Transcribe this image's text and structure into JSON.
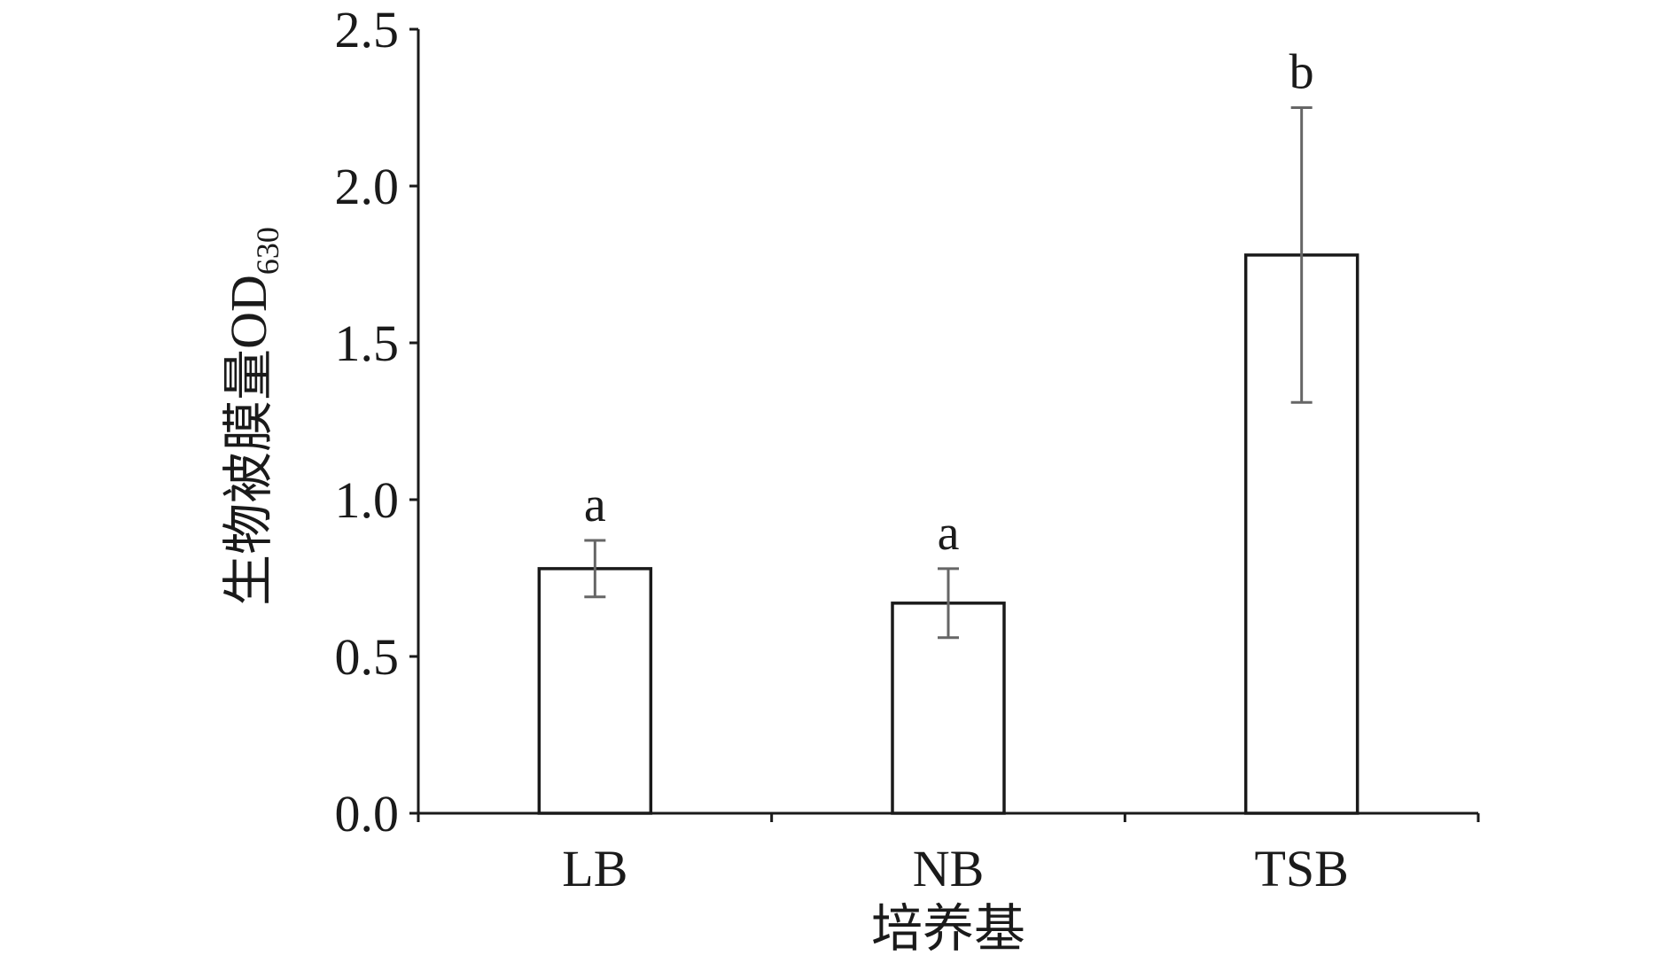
{
  "chart_data": {
    "type": "bar",
    "title": "",
    "xlabel": "培养基",
    "ylabel": "生物被膜量OD",
    "ylabel_subscript": "630",
    "categories": [
      "LB",
      "NB",
      "TSB"
    ],
    "values": [
      0.78,
      0.67,
      1.78
    ],
    "error_bars": [
      0.09,
      0.11,
      0.47
    ],
    "significance_labels": [
      "a",
      "a",
      "b"
    ],
    "ylim": [
      0,
      2.5
    ],
    "yticks": [
      "0.0",
      "0.5",
      "1.0",
      "1.5",
      "2.0",
      "2.5"
    ],
    "ytick_values": [
      0,
      0.5,
      1.0,
      1.5,
      2.0,
      2.5
    ],
    "grid": false,
    "legend": "none",
    "colors": {
      "bar_fill": "#ffffff",
      "bar_stroke": "#1a1a1a",
      "axis": "#1a1a1a",
      "error_bar": "#666666"
    }
  }
}
